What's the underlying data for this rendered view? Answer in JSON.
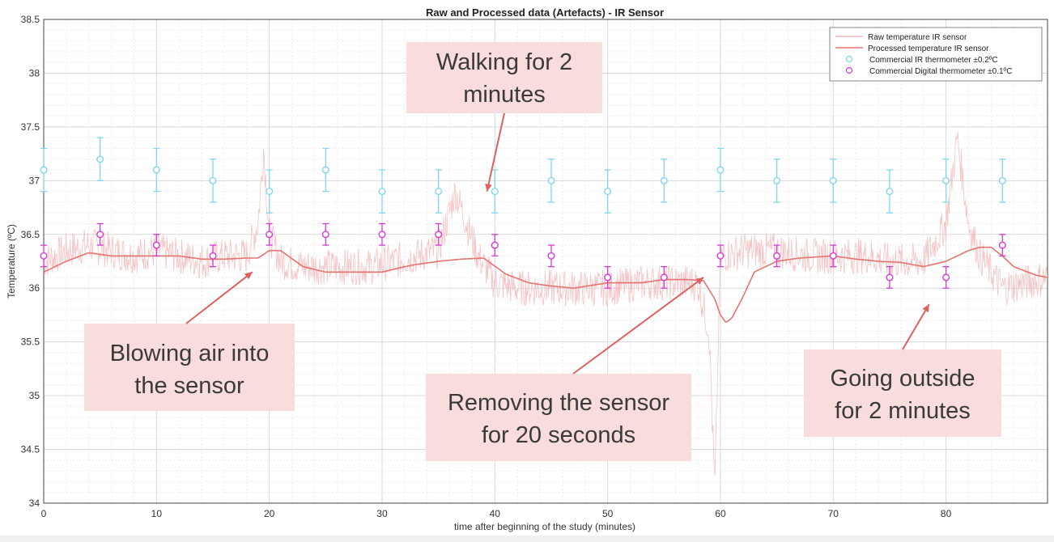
{
  "chart_data": {
    "type": "line",
    "title": "Raw and Processed data (Artefacts) - IR Sensor",
    "xlabel": "time after beginning of the study (minutes)",
    "ylabel": "Temperature (ºC)",
    "xlim": [
      0,
      89
    ],
    "ylim": [
      34,
      38.5
    ],
    "xticks": [
      "0",
      "10",
      "20",
      "30",
      "40",
      "50",
      "60",
      "70",
      "80"
    ],
    "yticks": [
      "34",
      "34.5",
      "35",
      "35.5",
      "36",
      "36.5",
      "37",
      "37.5",
      "38",
      "38.5"
    ],
    "grid": true,
    "legend_position": "top-right",
    "legend": [
      "Raw temperature IR sensor",
      "Processed temperature IR sensor",
      "Commercial IR thermometer ±0.2ºC",
      "Commercial Digital thermometer ±0.1ºC"
    ],
    "series": [
      {
        "name": "Raw temperature IR sensor",
        "color": "#f2b8b8",
        "noisy": true,
        "x": [
          0,
          2,
          4,
          6,
          8,
          10,
          12,
          14,
          16,
          18,
          19,
          19.5,
          20,
          21,
          23,
          25,
          27,
          29,
          31,
          33,
          35,
          36.5,
          37.5,
          38.5,
          40,
          42,
          45,
          48,
          50,
          53,
          56,
          58,
          59,
          59.5,
          60,
          62,
          65,
          68,
          70,
          73,
          75,
          78,
          80,
          81,
          81.5,
          82,
          83,
          85,
          87,
          89
        ],
        "y": [
          36.25,
          36.35,
          36.4,
          36.35,
          36.3,
          36.35,
          36.3,
          36.25,
          36.3,
          36.3,
          36.6,
          37.3,
          36.5,
          36.25,
          36.2,
          36.2,
          36.2,
          36.2,
          36.25,
          36.3,
          36.35,
          36.9,
          36.6,
          36.3,
          36.05,
          36.0,
          36.0,
          36.0,
          36.0,
          36.05,
          36.05,
          36.05,
          35.6,
          34.1,
          36.3,
          36.35,
          36.35,
          36.3,
          36.3,
          36.3,
          36.25,
          36.25,
          36.6,
          37.4,
          37.0,
          36.6,
          36.3,
          36.0,
          36.05,
          36.1
        ]
      },
      {
        "name": "Processed temperature IR sensor",
        "color": "#e8736e",
        "x": [
          0,
          2,
          4,
          6,
          8,
          10,
          12,
          14,
          16,
          18,
          19,
          20,
          21,
          23,
          25,
          27,
          30,
          32,
          33,
          35,
          37,
          39,
          41,
          43,
          45,
          47,
          50,
          53,
          55,
          57,
          58.5,
          59.5,
          60,
          60.5,
          61,
          62,
          63,
          65,
          67,
          70,
          72,
          74,
          76,
          78,
          80,
          81,
          82,
          83,
          84,
          85,
          86,
          88,
          89
        ],
        "y": [
          36.15,
          36.25,
          36.33,
          36.3,
          36.3,
          36.3,
          36.3,
          36.27,
          36.27,
          36.28,
          36.28,
          36.35,
          36.35,
          36.2,
          36.15,
          36.15,
          36.15,
          36.2,
          36.22,
          36.25,
          36.27,
          36.28,
          36.13,
          36.05,
          36.02,
          36.0,
          36.05,
          36.05,
          36.08,
          36.08,
          36.07,
          35.9,
          35.75,
          35.68,
          35.72,
          35.92,
          36.15,
          36.25,
          36.28,
          36.3,
          36.27,
          36.25,
          36.24,
          36.2,
          36.25,
          36.3,
          36.35,
          36.38,
          36.38,
          36.3,
          36.2,
          36.12,
          36.1
        ]
      }
    ],
    "error_series": [
      {
        "name": "Commercial IR thermometer ±0.2ºC",
        "color": "#7fd6f2",
        "error": 0.2,
        "x": [
          0,
          5,
          10,
          15,
          20,
          25,
          30,
          35,
          40,
          45,
          50,
          55,
          60,
          65,
          70,
          75,
          80,
          85
        ],
        "y": [
          37.1,
          37.2,
          37.1,
          37.0,
          36.9,
          37.1,
          36.9,
          36.9,
          36.9,
          37.0,
          36.9,
          37.0,
          37.1,
          37.0,
          37.0,
          36.9,
          37.0,
          37.0
        ]
      },
      {
        "name": "Commercial Digital thermometer ±0.1ºC",
        "color": "#d63ad6",
        "error": 0.1,
        "x": [
          0,
          5,
          10,
          15,
          20,
          25,
          30,
          35,
          40,
          45,
          50,
          55,
          60,
          65,
          70,
          75,
          80,
          85
        ],
        "y": [
          36.3,
          36.5,
          36.4,
          36.3,
          36.5,
          36.5,
          36.5,
          36.5,
          36.4,
          36.3,
          36.1,
          36.1,
          36.3,
          36.3,
          36.3,
          36.1,
          36.1,
          36.4
        ]
      }
    ],
    "annotations": [
      {
        "lines": [
          "Walking for 2",
          "minutes"
        ],
        "target": [
          39.3,
          36.9
        ]
      },
      {
        "lines": [
          "Blowing air into",
          "the sensor"
        ],
        "target": [
          18.5,
          36.15
        ]
      },
      {
        "lines": [
          "Removing the sensor",
          "for 20 seconds"
        ],
        "target": [
          58.5,
          36.1
        ]
      },
      {
        "lines": [
          "Going outside",
          "for 2 minutes"
        ],
        "target": [
          78.5,
          35.85
        ]
      }
    ]
  }
}
